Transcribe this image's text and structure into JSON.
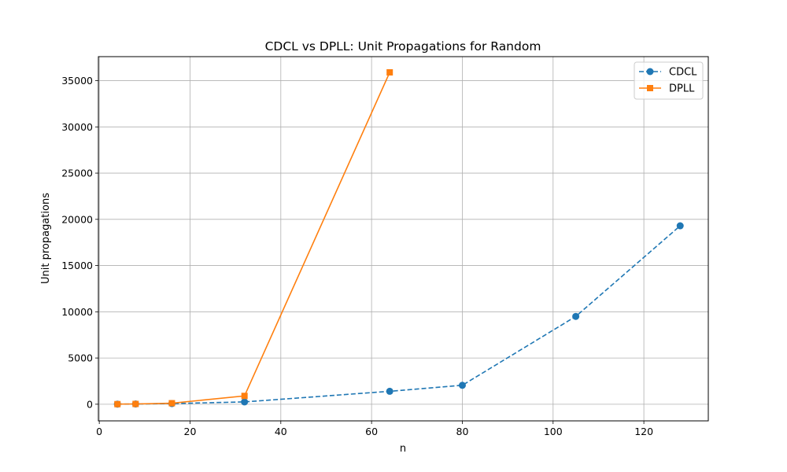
{
  "chart_data": {
    "type": "line",
    "title": "CDCL vs DPLL: Unit Propagations for Random",
    "xlabel": "n",
    "ylabel": "Unit propagations",
    "xlim": [
      -0.2,
      134.2
    ],
    "ylim": [
      -1800,
      37600
    ],
    "xticks": [
      0,
      20,
      40,
      60,
      80,
      100,
      120
    ],
    "yticks": [
      0,
      5000,
      10000,
      15000,
      20000,
      25000,
      30000,
      35000
    ],
    "grid": true,
    "legend_position": "top-right",
    "series": [
      {
        "name": "CDCL",
        "color": "#1f77b4",
        "linestyle": "dashed",
        "marker": "circle",
        "x": [
          4,
          8,
          16,
          32,
          64,
          80,
          105,
          128
        ],
        "y": [
          10,
          25,
          70,
          250,
          1400,
          2050,
          9500,
          19300
        ]
      },
      {
        "name": "DPLL",
        "color": "#ff7f0e",
        "linestyle": "solid",
        "marker": "square",
        "x": [
          4,
          8,
          16,
          32,
          64
        ],
        "y": [
          10,
          30,
          110,
          900,
          35900
        ]
      }
    ]
  }
}
